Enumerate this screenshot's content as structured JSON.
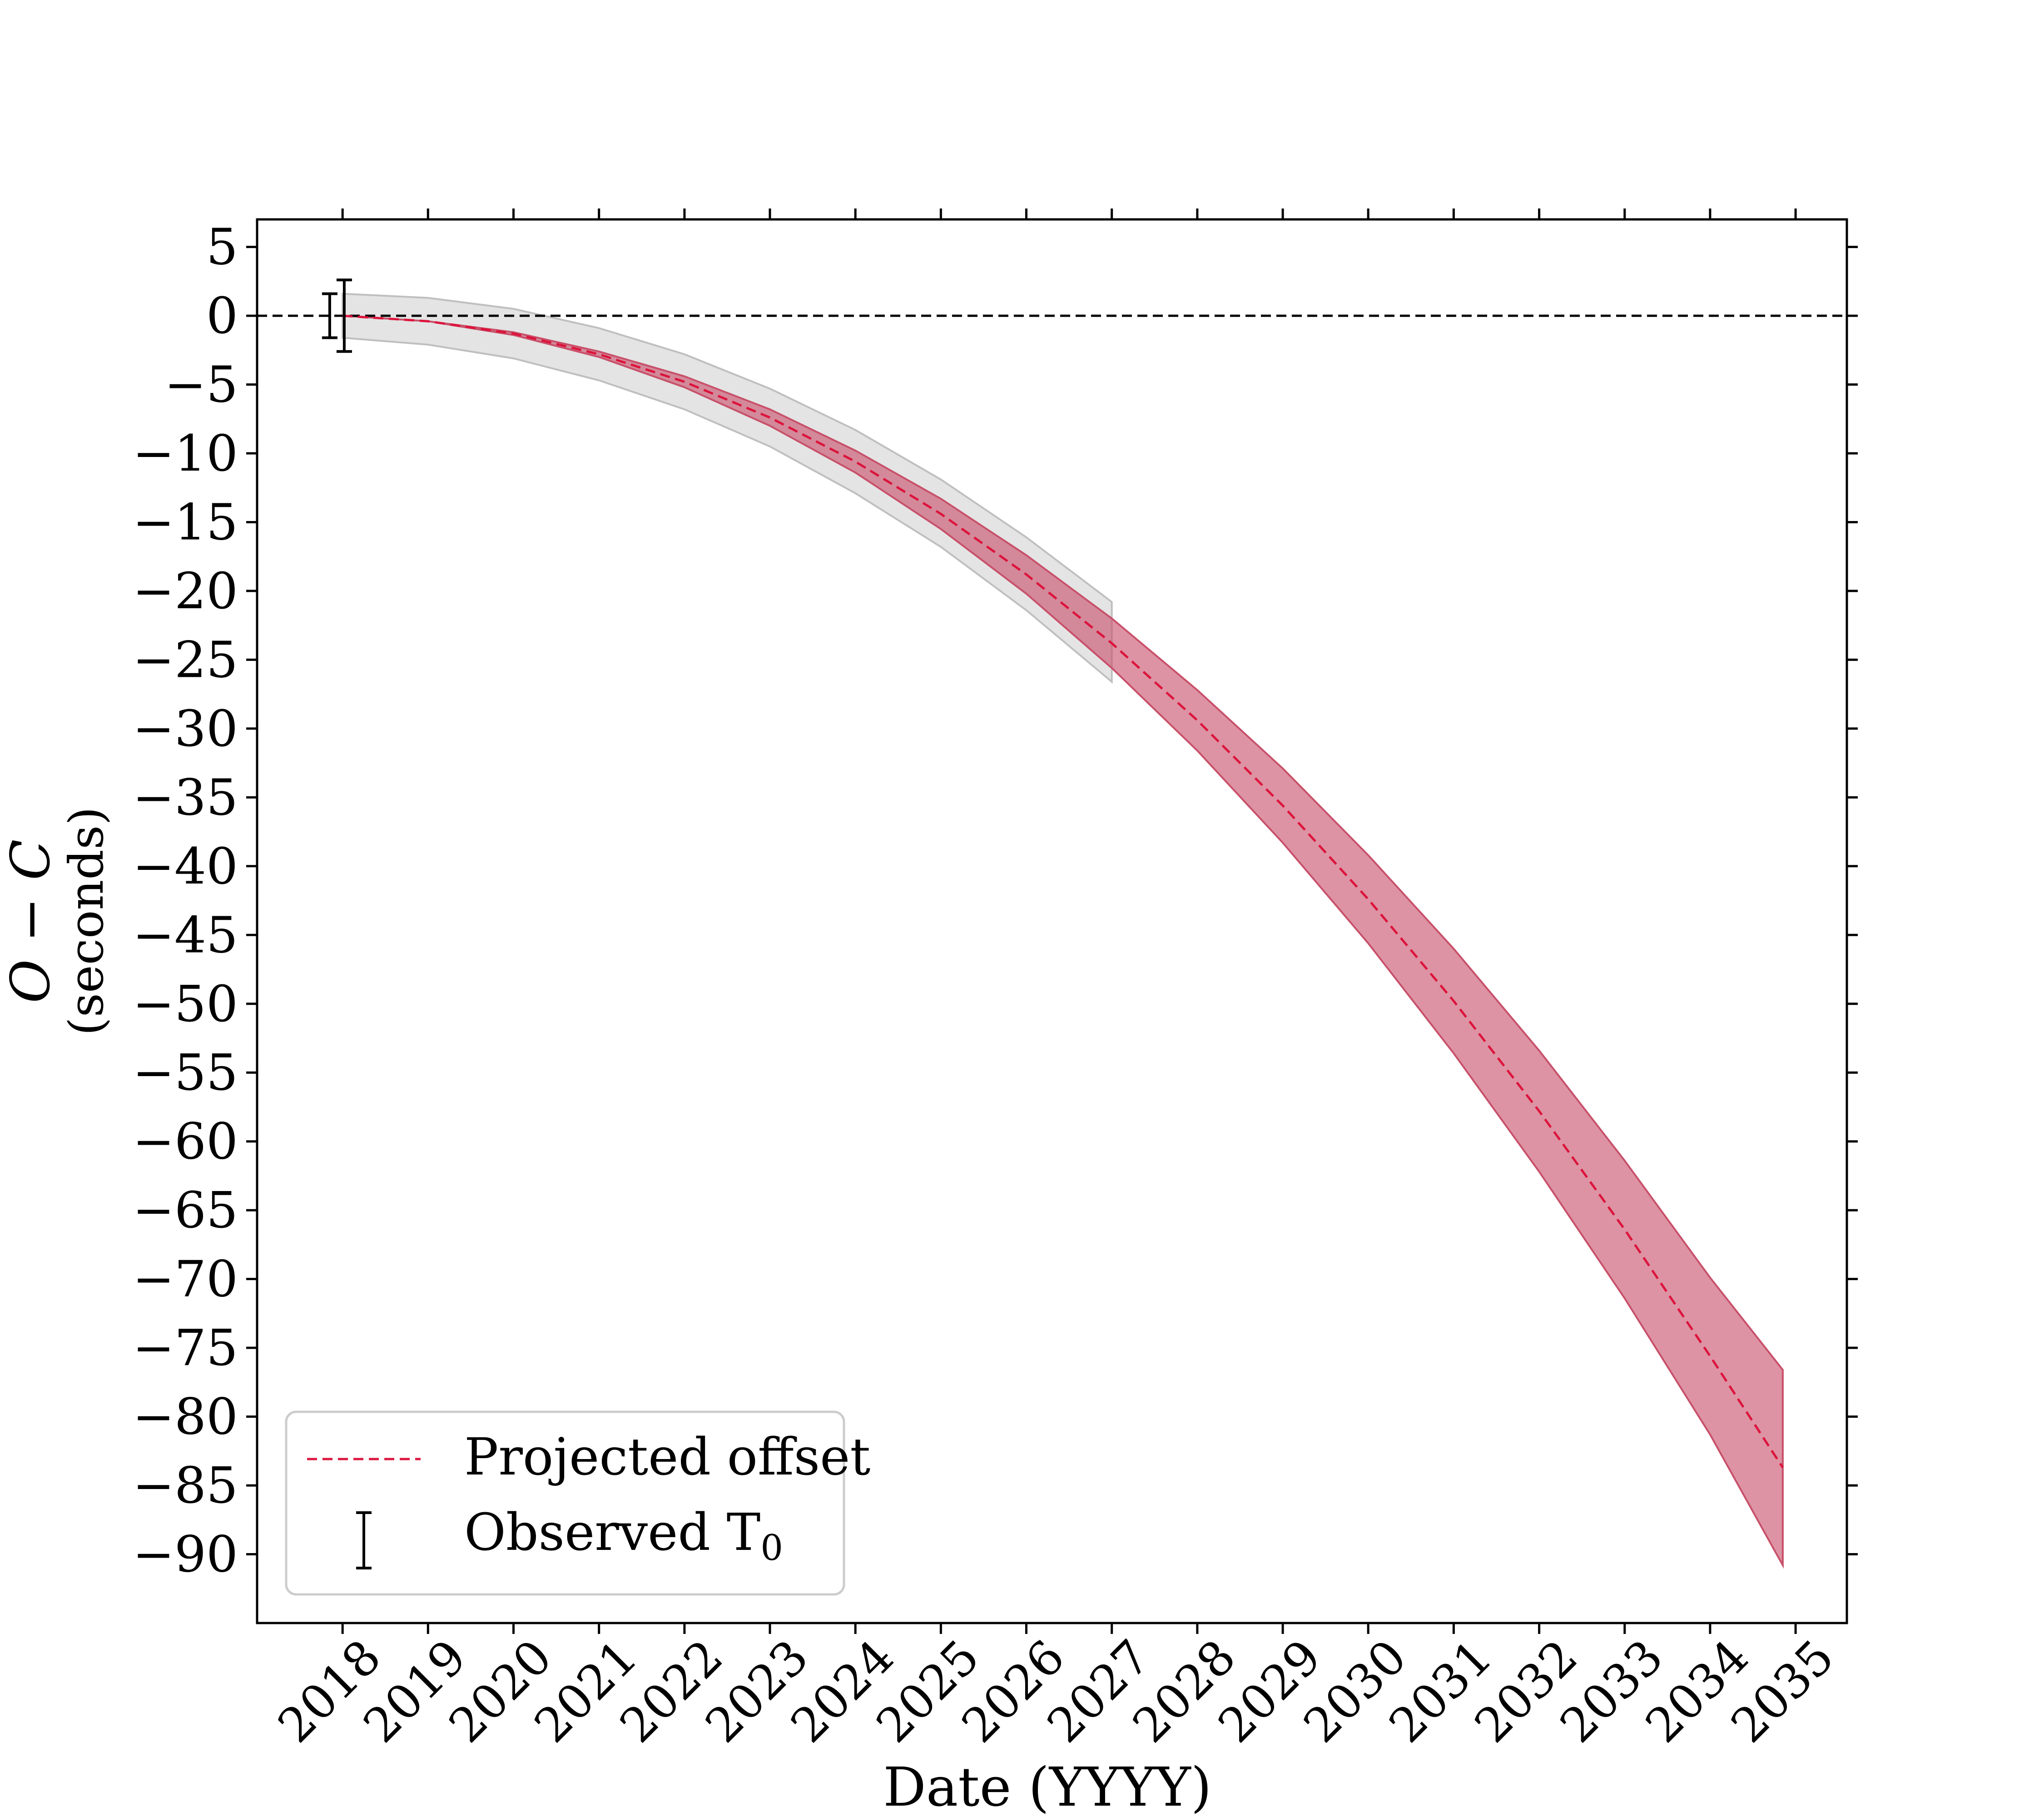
{
  "chart_data": {
    "type": "line",
    "xlabel": "Date (YYYY)",
    "ylabel_main": "O − C",
    "ylabel_unit": "(seconds)",
    "xlim": [
      2017.0,
      2035.6
    ],
    "ylim": [
      -95,
      7
    ],
    "xticks": [
      {
        "value": 2018,
        "label": "2018"
      },
      {
        "value": 2019,
        "label": "2019"
      },
      {
        "value": 2020,
        "label": "2020"
      },
      {
        "value": 2021,
        "label": "2021"
      },
      {
        "value": 2022,
        "label": "2022"
      },
      {
        "value": 2023,
        "label": "2023"
      },
      {
        "value": 2024,
        "label": "2024"
      },
      {
        "value": 2025,
        "label": "2025"
      },
      {
        "value": 2026,
        "label": "2026"
      },
      {
        "value": 2027,
        "label": "2027"
      },
      {
        "value": 2028,
        "label": "2028"
      },
      {
        "value": 2029,
        "label": "2029"
      },
      {
        "value": 2030,
        "label": "2030"
      },
      {
        "value": 2031,
        "label": "2031"
      },
      {
        "value": 2032,
        "label": "2032"
      },
      {
        "value": 2033,
        "label": "2033"
      },
      {
        "value": 2034,
        "label": "2034"
      },
      {
        "value": 2035,
        "label": "2035"
      }
    ],
    "yticks": [
      {
        "value": 5,
        "label": "5"
      },
      {
        "value": 0,
        "label": "0"
      },
      {
        "value": -5,
        "label": "−5"
      },
      {
        "value": -10,
        "label": "−10"
      },
      {
        "value": -15,
        "label": "−15"
      },
      {
        "value": -20,
        "label": "−20"
      },
      {
        "value": -25,
        "label": "−25"
      },
      {
        "value": -30,
        "label": "−30"
      },
      {
        "value": -35,
        "label": "−35"
      },
      {
        "value": -40,
        "label": "−40"
      },
      {
        "value": -45,
        "label": "−45"
      },
      {
        "value": -50,
        "label": "−50"
      },
      {
        "value": -55,
        "label": "−55"
      },
      {
        "value": -60,
        "label": "−60"
      },
      {
        "value": -65,
        "label": "−65"
      },
      {
        "value": -70,
        "label": "−70"
      },
      {
        "value": -75,
        "label": "−75"
      },
      {
        "value": -80,
        "label": "−80"
      },
      {
        "value": -85,
        "label": "−85"
      },
      {
        "value": -90,
        "label": "−90"
      }
    ],
    "zero_line": {
      "y": 0,
      "style": "dashed",
      "color": "#000000"
    },
    "projected_offset": {
      "name": "Projected offset",
      "color": "#dc143c",
      "style": "dashed",
      "x": [
        2018.0,
        2019.0,
        2020.0,
        2021.0,
        2022.0,
        2023.0,
        2024.0,
        2025.0,
        2026.0,
        2027.0,
        2028.0,
        2029.0,
        2030.0,
        2031.0,
        2032.0,
        2033.0,
        2034.0,
        2034.85
      ],
      "y": [
        0.0,
        -0.4,
        -1.3,
        -2.8,
        -4.8,
        -7.4,
        -10.6,
        -14.4,
        -18.8,
        -23.8,
        -29.4,
        -35.6,
        -42.4,
        -49.8,
        -57.8,
        -66.4,
        -75.6,
        -83.7
      ],
      "band_1sigma": {
        "color": "#c8506a",
        "lower": [
          0.0,
          -0.4,
          -1.4,
          -3.0,
          -5.2,
          -8.0,
          -11.4,
          -15.5,
          -20.2,
          -25.6,
          -31.6,
          -38.3,
          -45.6,
          -53.6,
          -62.2,
          -71.4,
          -81.3,
          -90.8
        ],
        "upper": [
          0.0,
          -0.4,
          -1.2,
          -2.6,
          -4.4,
          -6.8,
          -9.8,
          -13.3,
          -17.4,
          -22.0,
          -27.2,
          -32.9,
          -39.2,
          -46.0,
          -53.4,
          -61.4,
          -69.9,
          -76.6
        ]
      },
      "band_wide": {
        "color": "#bfbfbf",
        "lower": [
          -1.6,
          -2.1,
          -3.1,
          -4.7,
          -6.8,
          -9.5,
          -12.9,
          -16.8,
          -21.4,
          -26.6
        ],
        "upper": [
          1.6,
          1.3,
          0.5,
          -0.9,
          -2.8,
          -5.3,
          -8.3,
          -11.9,
          -16.1,
          -20.8
        ],
        "x": [
          2018.0,
          2019.0,
          2020.0,
          2021.0,
          2022.0,
          2023.0,
          2024.0,
          2025.0,
          2026.0,
          2027.0
        ]
      }
    },
    "observed_t0": {
      "name": "Observed T",
      "name_subscript": "0",
      "color": "#000000",
      "points": [
        {
          "x": 2017.85,
          "y": 0.0,
          "yerr": 1.6
        },
        {
          "x": 2018.02,
          "y": 0.0,
          "yerr": 2.6
        }
      ]
    },
    "legend": {
      "position": "lower-left"
    }
  }
}
